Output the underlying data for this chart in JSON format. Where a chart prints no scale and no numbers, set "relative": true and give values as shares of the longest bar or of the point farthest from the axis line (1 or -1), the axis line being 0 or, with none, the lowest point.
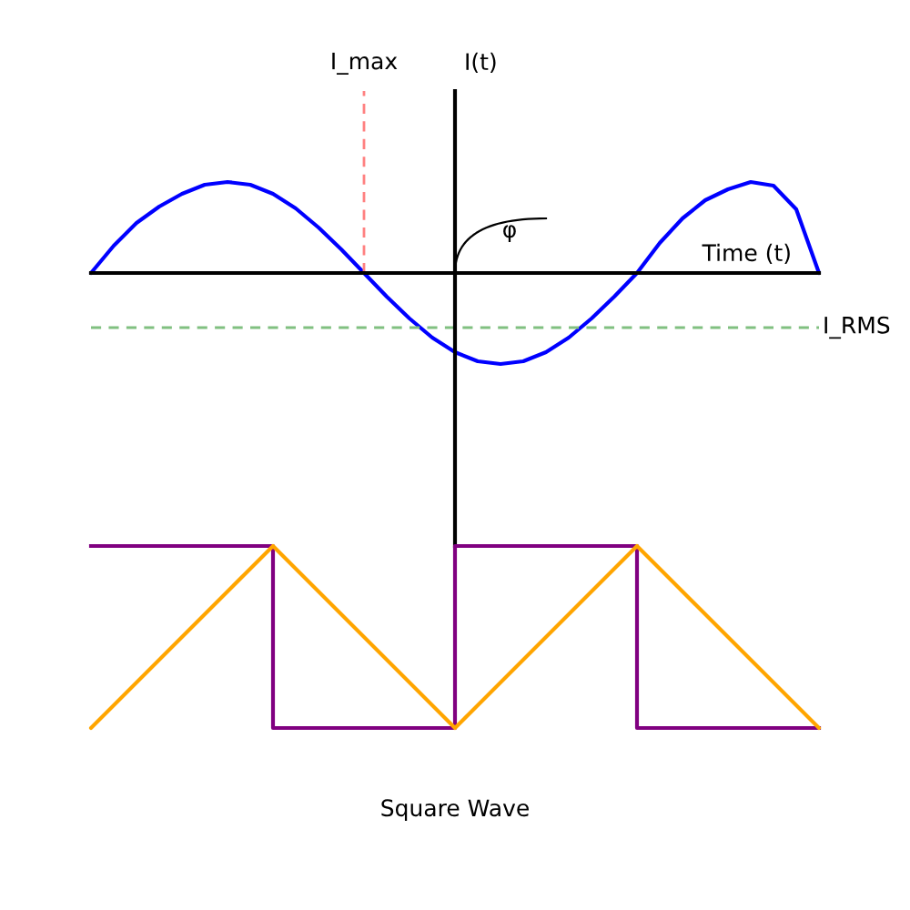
{
  "chart_data": [
    {
      "type": "line",
      "xlabel": "Time (t)",
      "ylabel": "I(t)",
      "relative": true,
      "tick_labels": false,
      "categories": [
        null,
        null,
        null,
        null,
        null,
        null,
        null,
        null,
        null,
        null,
        null,
        null,
        null,
        null,
        null,
        null,
        null,
        null,
        null,
        null,
        null,
        null,
        null,
        null,
        null,
        null,
        null,
        null,
        null,
        null,
        null,
        null,
        null
      ],
      "series": [
        {
          "color": "#0000ff",
          "values": [
            0,
            0.3,
            0.55,
            0.73,
            0.87,
            0.97,
            1,
            0.97,
            0.87,
            0.71,
            0.5,
            0.26,
            0,
            -0.26,
            -0.5,
            -0.71,
            -0.87,
            -0.97,
            -1,
            -0.97,
            -0.87,
            -0.71,
            -0.5,
            -0.26,
            0,
            0.33,
            0.6,
            0.8,
            0.92,
            1,
            0.96,
            0.7,
            0
          ]
        }
      ],
      "ref_lines": [
        {
          "axis": "y",
          "value": -0.6,
          "label": "I_RMS",
          "color": "#80c080",
          "line_style": "dashed"
        }
      ],
      "annotations": [
        "I_max",
        "φ"
      ]
    },
    {
      "type": "line",
      "relative": true,
      "tick_labels": false,
      "categories": [
        null,
        null,
        null,
        null,
        null
      ],
      "series": [
        {
          "type": "step",
          "color": "#800080",
          "values": [
            1,
            0,
            1,
            0,
            0
          ]
        },
        {
          "type": "line",
          "color": "#ffa500",
          "values": [
            0,
            1,
            0,
            1,
            0
          ]
        }
      ],
      "annotations": [
        "Square Wave"
      ]
    }
  ]
}
